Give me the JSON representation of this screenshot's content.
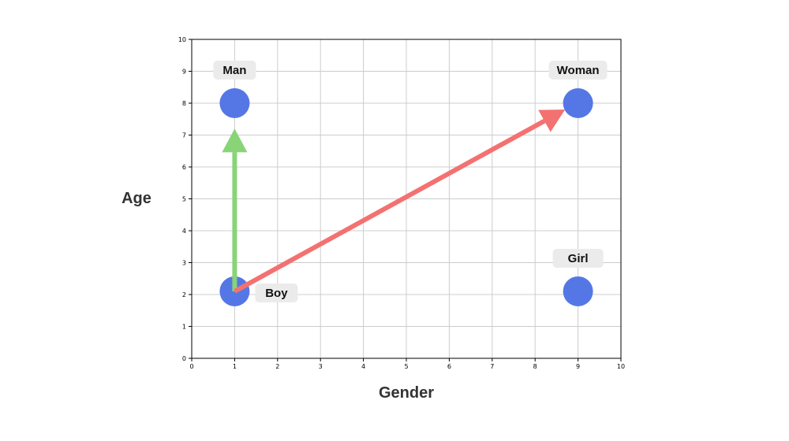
{
  "chart_data": {
    "type": "scatter",
    "xlabel": "Gender",
    "ylabel": "Age",
    "xlim": [
      0,
      10
    ],
    "ylim": [
      0,
      10
    ],
    "xticks": [
      "0",
      "1",
      "2",
      "3",
      "4",
      "5",
      "6",
      "7",
      "8",
      "9",
      "10"
    ],
    "yticks": [
      "0",
      "1",
      "2",
      "3",
      "4",
      "5",
      "6",
      "7",
      "8",
      "9",
      "10"
    ],
    "grid": true,
    "points": [
      {
        "label": "Man",
        "x": 1,
        "y": 8,
        "label_position": "above"
      },
      {
        "label": "Woman",
        "x": 9,
        "y": 8,
        "label_position": "above"
      },
      {
        "label": "Boy",
        "x": 1,
        "y": 2.1,
        "label_position": "right"
      },
      {
        "label": "Girl",
        "x": 9,
        "y": 2.1,
        "label_position": "above"
      }
    ],
    "arrows": [
      {
        "from": [
          1,
          2.1
        ],
        "to": [
          1,
          7.2
        ],
        "color": "#88d477"
      },
      {
        "from": [
          1,
          2.1
        ],
        "to": [
          8.7,
          7.8
        ],
        "color": "#f47171"
      }
    ],
    "colors": {
      "point": "#5577e6",
      "label_background": "#ebebeb",
      "grid": "#cccccc",
      "axis": "#000000"
    }
  }
}
